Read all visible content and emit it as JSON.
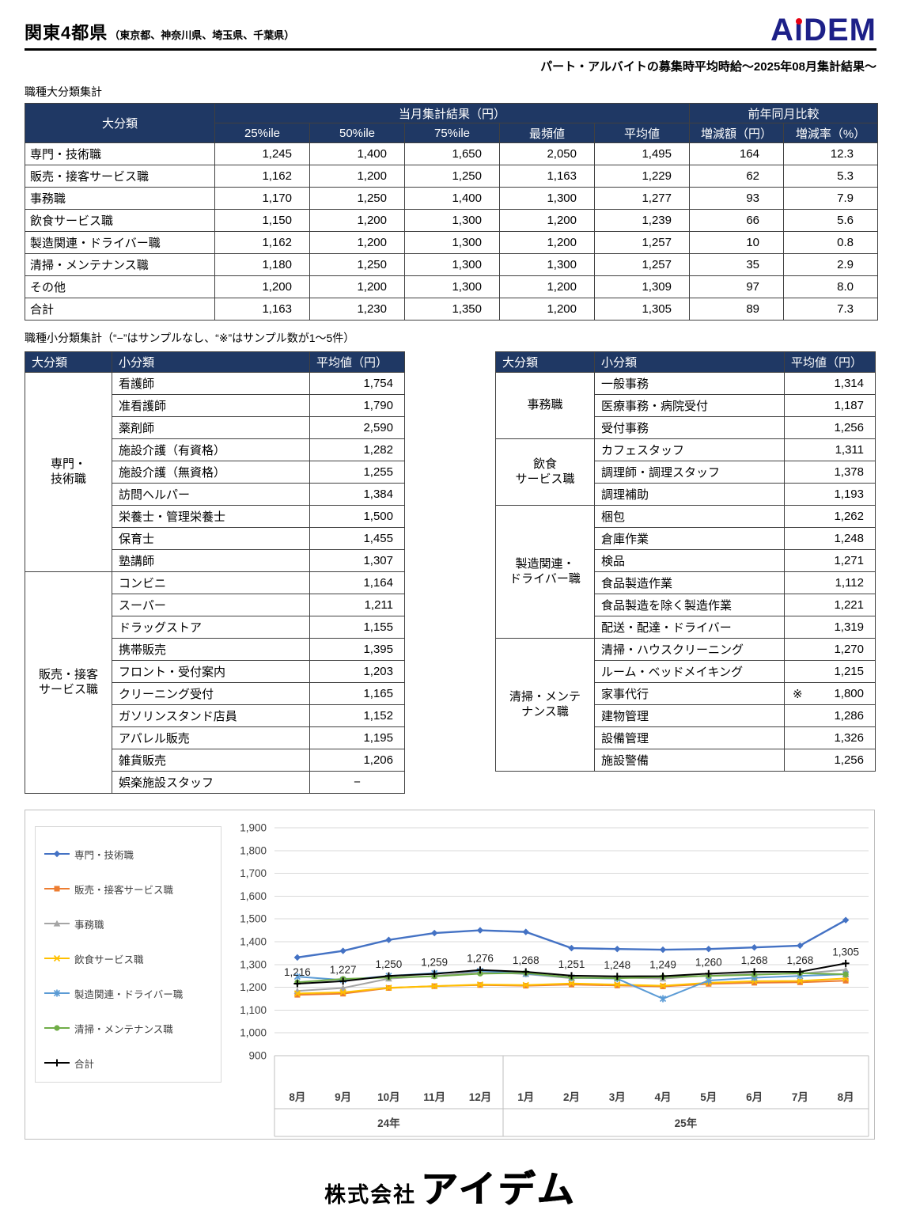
{
  "header": {
    "title": "関東4都県",
    "title_note": "（東京都、神奈川県、埼玉県、千葉県）",
    "logo_parts": [
      "A",
      "i",
      "DEM"
    ],
    "logo_color": "#1d2088",
    "logo_dot_color": "#e60012",
    "subtitle": "パート・アルバイトの募集時平均時給～2025年08月集計結果～"
  },
  "major_table": {
    "caption": "職種大分類集計",
    "label_header": "大分類",
    "group_current": "当月集計結果（円）",
    "group_yoy": "前年同月比較",
    "columns": [
      "25%ile",
      "50%ile",
      "75%ile",
      "最頻値",
      "平均値",
      "増減額（円）",
      "増減率（%）"
    ],
    "rows": [
      {
        "label": "専門・技術職",
        "values": [
          "1,245",
          "1,400",
          "1,650",
          "2,050",
          "1,495",
          "164",
          "12.3"
        ]
      },
      {
        "label": "販売・接客サービス職",
        "values": [
          "1,162",
          "1,200",
          "1,250",
          "1,163",
          "1,229",
          "62",
          "5.3"
        ]
      },
      {
        "label": "事務職",
        "values": [
          "1,170",
          "1,250",
          "1,400",
          "1,300",
          "1,277",
          "93",
          "7.9"
        ]
      },
      {
        "label": "飲食サービス職",
        "values": [
          "1,150",
          "1,200",
          "1,300",
          "1,200",
          "1,239",
          "66",
          "5.6"
        ]
      },
      {
        "label": "製造関連・ドライバー職",
        "values": [
          "1,162",
          "1,200",
          "1,300",
          "1,200",
          "1,257",
          "10",
          "0.8"
        ]
      },
      {
        "label": "清掃・メンテナンス職",
        "values": [
          "1,180",
          "1,250",
          "1,300",
          "1,300",
          "1,257",
          "35",
          "2.9"
        ]
      },
      {
        "label": "その他",
        "values": [
          "1,200",
          "1,200",
          "1,300",
          "1,200",
          "1,309",
          "97",
          "8.0"
        ]
      },
      {
        "label": "合計",
        "values": [
          "1,163",
          "1,230",
          "1,350",
          "1,200",
          "1,305",
          "89",
          "7.3"
        ]
      }
    ]
  },
  "minor_section": {
    "caption": "職種小分類集計（“−”はサンプルなし、“※”はサンプル数が1～5件）",
    "headers": [
      "大分類",
      "小分類",
      "平均値（円）"
    ],
    "left_table": {
      "groups": [
        {
          "label": "専門・\n技術職",
          "items": [
            {
              "name": "看護師",
              "value": "1,754"
            },
            {
              "name": "准看護師",
              "value": "1,790"
            },
            {
              "name": "薬剤師",
              "value": "2,590"
            },
            {
              "name": "施設介護（有資格）",
              "value": "1,282"
            },
            {
              "name": "施設介護（無資格）",
              "value": "1,255"
            },
            {
              "name": "訪問ヘルパー",
              "value": "1,384"
            },
            {
              "name": "栄養士・管理栄養士",
              "value": "1,500"
            },
            {
              "name": "保育士",
              "value": "1,455"
            },
            {
              "name": "塾講師",
              "value": "1,307"
            }
          ]
        },
        {
          "label": "販売・接客\nサービス職",
          "items": [
            {
              "name": "コンビニ",
              "value": "1,164"
            },
            {
              "name": "スーパー",
              "value": "1,211"
            },
            {
              "name": "ドラッグストア",
              "value": "1,155"
            },
            {
              "name": "携帯販売",
              "value": "1,395"
            },
            {
              "name": "フロント・受付案内",
              "value": "1,203"
            },
            {
              "name": "クリーニング受付",
              "value": "1,165"
            },
            {
              "name": "ガソリンスタンド店員",
              "value": "1,152"
            },
            {
              "name": "アパレル販売",
              "value": "1,195"
            },
            {
              "name": "雑貨販売",
              "value": "1,206"
            },
            {
              "name": "娯楽施設スタッフ",
              "value": "−",
              "align": "center"
            }
          ]
        }
      ]
    },
    "right_table": {
      "groups": [
        {
          "label": "事務職",
          "items": [
            {
              "name": "一般事務",
              "value": "1,314"
            },
            {
              "name": "医療事務・病院受付",
              "value": "1,187"
            },
            {
              "name": "受付事務",
              "value": "1,256"
            }
          ]
        },
        {
          "label": "飲食\nサービス職",
          "items": [
            {
              "name": "カフェスタッフ",
              "value": "1,311"
            },
            {
              "name": "調理師・調理スタッフ",
              "value": "1,378"
            },
            {
              "name": "調理補助",
              "value": "1,193"
            }
          ]
        },
        {
          "label": "製造関連・\nドライバー職",
          "items": [
            {
              "name": "梱包",
              "value": "1,262"
            },
            {
              "name": "倉庫作業",
              "value": "1,248"
            },
            {
              "name": "検品",
              "value": "1,271"
            },
            {
              "name": "食品製造作業",
              "value": "1,112"
            },
            {
              "name": "食品製造を除く製造作業",
              "value": "1,221"
            },
            {
              "name": "配送・配達・ドライバー",
              "value": "1,319"
            }
          ]
        },
        {
          "label": "清掃・メンテ\nナンス職",
          "items": [
            {
              "name": "清掃・ハウスクリーニング",
              "value": "1,270"
            },
            {
              "name": "ルーム・ベッドメイキング",
              "value": "1,215"
            },
            {
              "name": "家事代行",
              "value": "1,800",
              "mark": "※"
            },
            {
              "name": "建物管理",
              "value": "1,286"
            },
            {
              "name": "設備管理",
              "value": "1,326"
            },
            {
              "name": "施設警備",
              "value": "1,256"
            }
          ]
        }
      ]
    }
  },
  "chart_data": {
    "type": "line",
    "title": "",
    "x": [
      "8月",
      "9月",
      "10月",
      "11月",
      "12月",
      "1月",
      "2月",
      "3月",
      "4月",
      "5月",
      "6月",
      "7月",
      "8月"
    ],
    "x_groups": [
      {
        "label": "24年",
        "count": 5
      },
      {
        "label": "25年",
        "count": 8
      }
    ],
    "ylim": [
      900,
      1900
    ],
    "ytick_step": 100,
    "grid": "horizontal",
    "legend_position": "left",
    "series": [
      {
        "name": "専門・技術職",
        "color": "#4472C4",
        "marker": "diamond",
        "width": 2.4,
        "values": [
          1331,
          1360,
          1408,
          1438,
          1450,
          1443,
          1372,
          1368,
          1365,
          1368,
          1375,
          1383,
          1495
        ]
      },
      {
        "name": "販売・接客サービス職",
        "color": "#ED7D31",
        "marker": "square",
        "width": 2,
        "values": [
          1167,
          1172,
          1197,
          1205,
          1210,
          1207,
          1212,
          1208,
          1204,
          1215,
          1220,
          1222,
          1229
        ]
      },
      {
        "name": "事務職",
        "color": "#A5A5A5",
        "marker": "triangle",
        "width": 2,
        "values": [
          1184,
          1197,
          1238,
          1250,
          1268,
          1258,
          1240,
          1243,
          1238,
          1252,
          1258,
          1260,
          1277
        ]
      },
      {
        "name": "飲食サービス職",
        "color": "#FFC000",
        "marker": "x",
        "width": 2,
        "values": [
          1173,
          1178,
          1198,
          1205,
          1212,
          1210,
          1217,
          1212,
          1207,
          1220,
          1227,
          1228,
          1239
        ]
      },
      {
        "name": "製造関連・ドライバー職",
        "color": "#5B9BD5",
        "marker": "asterisk",
        "width": 2,
        "values": [
          1247,
          1232,
          1250,
          1262,
          1272,
          1260,
          1243,
          1238,
          1150,
          1230,
          1242,
          1250,
          1257
        ]
      },
      {
        "name": "清掃・メンテナンス職",
        "color": "#70AD47",
        "marker": "circle",
        "width": 2,
        "values": [
          1222,
          1237,
          1243,
          1248,
          1260,
          1263,
          1243,
          1240,
          1245,
          1250,
          1255,
          1262,
          1257
        ]
      },
      {
        "name": "合計",
        "color": "#000000",
        "marker": "plus",
        "width": 2,
        "show_labels": true,
        "values": [
          1216,
          1227,
          1250,
          1259,
          1276,
          1268,
          1251,
          1248,
          1249,
          1260,
          1268,
          1268,
          1305
        ],
        "labels": [
          "1,216",
          "1,227",
          "1,250",
          "1,259",
          "1,276",
          "1,268",
          "1,251",
          "1,248",
          "1,249",
          "1,260",
          "1,268",
          "1,268",
          "1,305"
        ]
      }
    ]
  },
  "footer": {
    "company_prefix": "株式会社",
    "company_name": "アイデム"
  }
}
